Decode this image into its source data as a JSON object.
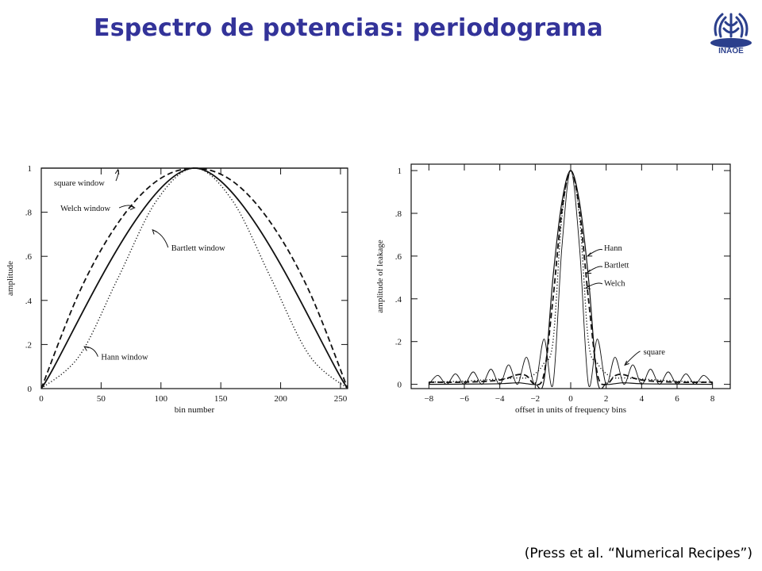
{
  "slide": {
    "title": "Espectro de potencias: periodograma",
    "logo_text": "INAOE",
    "credit": "(Press et al. “Numerical Recipes”)"
  },
  "colors": {
    "title": "#333399",
    "logo": "#2b3f8c",
    "ink": "#111111"
  },
  "chart_data": [
    {
      "type": "line",
      "title": "",
      "xlabel": "bin number",
      "ylabel": "amplitude",
      "xlim": [
        0,
        256
      ],
      "ylim": [
        0,
        1
      ],
      "xticks": [
        0,
        50,
        100,
        150,
        200,
        250
      ],
      "yticks": [
        0,
        0.2,
        0.4,
        0.6,
        0.8,
        1
      ],
      "xtick_labels": [
        "0",
        "50",
        "100",
        "150",
        "200",
        "250"
      ],
      "ytick_labels": [
        "0",
        ".2",
        ".4",
        ".6",
        ".8",
        "1"
      ],
      "grid": false,
      "series": [
        {
          "name": "square window",
          "style": "solid",
          "x": [
            0,
            256
          ],
          "y": [
            1,
            1
          ]
        },
        {
          "name": "Welch window",
          "style": "dashed",
          "x": [
            0,
            32,
            64,
            96,
            128,
            160,
            192,
            224,
            256
          ],
          "y": [
            0,
            0.44,
            0.75,
            0.94,
            1,
            0.94,
            0.75,
            0.44,
            0
          ]
        },
        {
          "name": "Bartlett window",
          "style": "solid-bold",
          "x": [
            0,
            128,
            256
          ],
          "y": [
            0,
            1,
            0
          ]
        },
        {
          "name": "Hann window",
          "style": "dotted",
          "x": [
            0,
            32,
            64,
            96,
            128,
            160,
            192,
            224,
            256
          ],
          "y": [
            0,
            0.15,
            0.5,
            0.85,
            1,
            0.85,
            0.5,
            0.15,
            0
          ]
        }
      ],
      "annotations": [
        {
          "text": "square window",
          "series": "square window"
        },
        {
          "text": "Welch window",
          "series": "Welch window"
        },
        {
          "text": "Bartlett window",
          "series": "Bartlett window"
        },
        {
          "text": "Hann window",
          "series": "Hann window"
        }
      ]
    },
    {
      "type": "line",
      "title": "",
      "xlabel": "offset in units of frequency bins",
      "ylabel": "amplitude of leakage",
      "xlim": [
        -9,
        9
      ],
      "ylim": [
        -0.02,
        1.03
      ],
      "xticks": [
        -8,
        -6,
        -4,
        -2,
        0,
        2,
        4,
        6,
        8
      ],
      "yticks": [
        0,
        0.2,
        0.4,
        0.6,
        0.8,
        1
      ],
      "xtick_labels": [
        "−8",
        "−6",
        "−4",
        "−2",
        "0",
        "2",
        "4",
        "6",
        "8"
      ],
      "ytick_labels": [
        "0",
        ".2",
        ".4",
        ".6",
        ".8",
        "1"
      ],
      "grid": false,
      "series": [
        {
          "name": "square",
          "style": "solid-thin",
          "x": [
            -8,
            -7.5,
            -7,
            -6.5,
            -6,
            -5.5,
            -5,
            -4.5,
            -4,
            -3.5,
            -3,
            -2.5,
            -2,
            -1.5,
            -1,
            -0.5,
            0,
            0.5,
            1,
            1.5,
            2,
            2.5,
            3,
            3.5,
            4,
            4.5,
            5,
            5.5,
            6,
            6.5,
            7,
            7.5,
            8
          ],
          "y": [
            0,
            0.042,
            0,
            0.049,
            0,
            0.058,
            0,
            0.071,
            0,
            0.091,
            0,
            0.127,
            0,
            0.212,
            0,
            0.637,
            1,
            0.637,
            0,
            0.212,
            0,
            0.127,
            0,
            0.091,
            0,
            0.071,
            0,
            0.058,
            0,
            0.049,
            0,
            0.042,
            0
          ]
        },
        {
          "name": "Hann",
          "style": "solid",
          "x": [
            -8,
            -6,
            -4,
            -3,
            -2.5,
            -2,
            -1.5,
            -1,
            -0.5,
            0,
            0.5,
            1,
            1.5,
            2,
            2.5,
            3,
            4,
            6,
            8
          ],
          "y": [
            0,
            0.001,
            0.003,
            0.007,
            0.003,
            0,
            0.02,
            0.5,
            0.85,
            1,
            0.85,
            0.5,
            0.02,
            0,
            0.003,
            0.007,
            0.003,
            0.001,
            0
          ]
        },
        {
          "name": "Bartlett",
          "style": "dashed",
          "x": [
            -8,
            -6,
            -4,
            -3,
            -2.5,
            -2,
            -1.5,
            -1,
            -0.5,
            0,
            0.5,
            1,
            1.5,
            2,
            2.5,
            3,
            4,
            6,
            8
          ],
          "y": [
            0.01,
            0.01,
            0.02,
            0.045,
            0.04,
            0,
            0.05,
            0.4,
            0.81,
            1,
            0.81,
            0.4,
            0.05,
            0,
            0.04,
            0.045,
            0.02,
            0.01,
            0.01
          ]
        },
        {
          "name": "Welch",
          "style": "dotted",
          "x": [
            -8,
            -6,
            -4,
            -3,
            -2.5,
            -2,
            -1.5,
            -1,
            -0.5,
            0,
            0.5,
            1,
            1.5,
            2,
            2.5,
            3,
            4,
            6,
            8
          ],
          "y": [
            0.01,
            0.015,
            0.025,
            0.03,
            0.03,
            0.05,
            0.1,
            0.2,
            0.78,
            1,
            0.78,
            0.2,
            0.1,
            0.05,
            0.03,
            0.03,
            0.025,
            0.015,
            0.01
          ]
        }
      ],
      "annotations": [
        {
          "text": "Hann",
          "series": "Hann"
        },
        {
          "text": "Bartlett",
          "series": "Bartlett"
        },
        {
          "text": "Welch",
          "series": "Welch"
        },
        {
          "text": "square",
          "series": "square"
        }
      ]
    }
  ]
}
